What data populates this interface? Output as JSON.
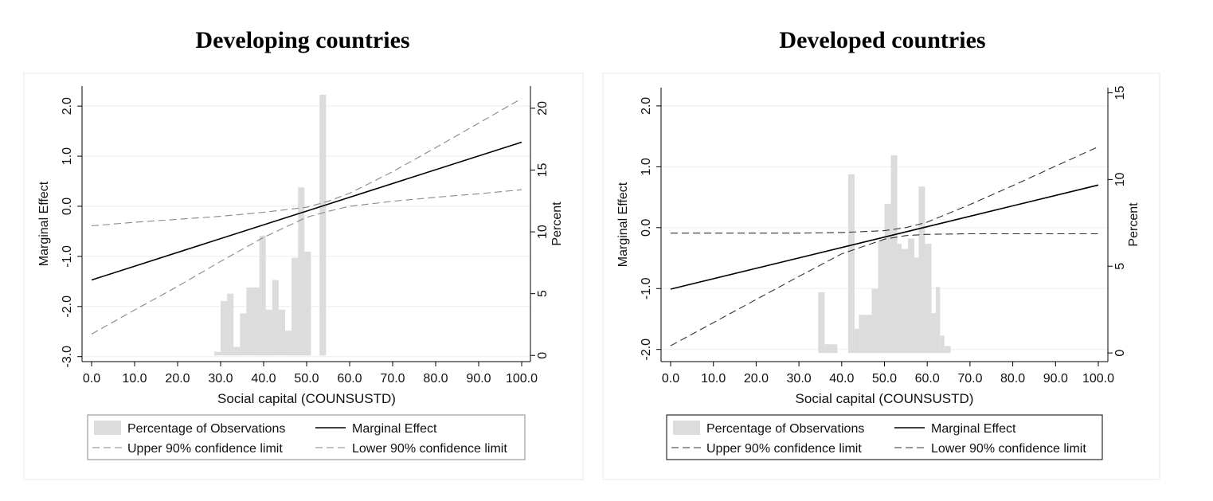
{
  "chart_data": [
    {
      "type": "histogram-line",
      "title": "Developing countries",
      "xlabel": "Social capital (COUNSUSTD)",
      "ylabel": "Marginal Effect",
      "ylabel2": "Percent",
      "xlim": [
        0,
        100
      ],
      "ylim": [
        -3.1,
        2.4
      ],
      "y2lim": [
        -0.5,
        21.8
      ],
      "xticks": [
        "0.0",
        "10.0",
        "20.0",
        "30.0",
        "40.0",
        "50.0",
        "60.0",
        "70.0",
        "80.0",
        "90.0",
        "100.0"
      ],
      "xtick_values": [
        0,
        10,
        20,
        30,
        40,
        50,
        60,
        70,
        80,
        90,
        100
      ],
      "yticks": [
        "-3.0",
        "-2.0",
        "-1.0",
        "0.0",
        "1.0",
        "2.0"
      ],
      "ytick_values": [
        -3,
        -2,
        -1,
        0,
        1,
        2
      ],
      "y2ticks": [
        "0",
        "5",
        "10",
        "15",
        "20"
      ],
      "y2tick_values": [
        0,
        5,
        10,
        15,
        20
      ],
      "histogram": {
        "name": "Percentage of Observations",
        "color": "#dcdcdc",
        "bins": [
          {
            "x0": 28.5,
            "x1": 30.0,
            "percent": 0.3
          },
          {
            "x0": 30.0,
            "x1": 31.5,
            "percent": 4.4
          },
          {
            "x0": 31.5,
            "x1": 33.0,
            "percent": 5.0
          },
          {
            "x0": 33.0,
            "x1": 34.5,
            "percent": 0.7
          },
          {
            "x0": 34.5,
            "x1": 36.0,
            "percent": 3.4
          },
          {
            "x0": 36.0,
            "x1": 39.0,
            "percent": 5.5
          },
          {
            "x0": 39.0,
            "x1": 40.5,
            "percent": 9.7
          },
          {
            "x0": 40.5,
            "x1": 42.0,
            "percent": 3.7
          },
          {
            "x0": 42.0,
            "x1": 43.5,
            "percent": 6.1
          },
          {
            "x0": 43.5,
            "x1": 45.0,
            "percent": 3.7
          },
          {
            "x0": 45.0,
            "x1": 46.5,
            "percent": 2.0
          },
          {
            "x0": 46.5,
            "x1": 48.0,
            "percent": 7.9
          },
          {
            "x0": 48.0,
            "x1": 49.5,
            "percent": 13.6
          },
          {
            "x0": 49.5,
            "x1": 51.0,
            "percent": 8.4
          },
          {
            "x0": 53.0,
            "x1": 54.5,
            "percent": 21.1
          }
        ]
      },
      "series": [
        {
          "name": "Marginal Effect",
          "style": "solid",
          "color": "#000000",
          "x": [
            0,
            100
          ],
          "y": [
            -1.47,
            1.28
          ]
        },
        {
          "name": "Upper 90% confidence limit",
          "style": "dashed",
          "color": "#888888",
          "x": [
            0,
            10,
            20,
            30,
            40,
            50,
            55,
            60,
            70,
            80,
            90,
            100
          ],
          "y": [
            -0.39,
            -0.32,
            -0.26,
            -0.2,
            -0.12,
            -0.02,
            0.1,
            0.26,
            0.69,
            1.17,
            1.66,
            2.15
          ]
        },
        {
          "name": "Lower 90% confidence limit",
          "style": "dashed",
          "color": "#888888",
          "x": [
            0,
            10,
            20,
            30,
            40,
            50,
            55,
            60,
            70,
            80,
            90,
            100
          ],
          "y": [
            -2.55,
            -2.07,
            -1.6,
            -1.1,
            -0.62,
            -0.22,
            -0.1,
            0.0,
            0.1,
            0.18,
            0.25,
            0.33
          ]
        }
      ],
      "legend": {
        "position": "bottom",
        "border": "#888888",
        "entries": [
          "Percentage of Observations",
          "Marginal Effect",
          "Upper 90% confidence limit",
          "Lower 90% confidence limit"
        ]
      }
    },
    {
      "type": "histogram-line",
      "title": "Developed countries",
      "xlabel": "Social capital (COUNSUSTD)",
      "ylabel": "Marginal Effect",
      "ylabel2": "Percent",
      "xlim": [
        0,
        100
      ],
      "ylim": [
        -2.2,
        2.3
      ],
      "y2lim": [
        -0.5,
        15.3
      ],
      "xticks": [
        "0.0",
        "10.0",
        "20.0",
        "30.0",
        "40.0",
        "50.0",
        "60.0",
        "70.0",
        "80.0",
        "90.0",
        "100.0"
      ],
      "xtick_values": [
        0,
        10,
        20,
        30,
        40,
        50,
        60,
        70,
        80,
        90,
        100
      ],
      "yticks": [
        "-2.0",
        "-1.0",
        "0.0",
        "1.0",
        "2.0"
      ],
      "ytick_values": [
        -2,
        -1,
        0,
        1,
        2
      ],
      "y2ticks": [
        "0",
        "5",
        "10",
        "15"
      ],
      "y2tick_values": [
        0,
        5,
        10,
        15
      ],
      "histogram": {
        "name": "Percentage of Observations",
        "color": "#dcdcdc",
        "bins": [
          {
            "x0": 34.5,
            "x1": 36.0,
            "percent": 3.5
          },
          {
            "x0": 36.0,
            "x1": 39.0,
            "percent": 0.5
          },
          {
            "x0": 41.5,
            "x1": 43.0,
            "percent": 10.3
          },
          {
            "x0": 43.0,
            "x1": 44.0,
            "percent": 1.4
          },
          {
            "x0": 44.0,
            "x1": 47.0,
            "percent": 2.2
          },
          {
            "x0": 47.0,
            "x1": 48.5,
            "percent": 3.7
          },
          {
            "x0": 48.5,
            "x1": 50.0,
            "percent": 6.5
          },
          {
            "x0": 50.0,
            "x1": 51.5,
            "percent": 8.6
          },
          {
            "x0": 51.5,
            "x1": 53.0,
            "percent": 11.4
          },
          {
            "x0": 53.0,
            "x1": 54.0,
            "percent": 6.3
          },
          {
            "x0": 54.0,
            "x1": 55.5,
            "percent": 6.0
          },
          {
            "x0": 55.5,
            "x1": 57.0,
            "percent": 6.6
          },
          {
            "x0": 57.0,
            "x1": 58.0,
            "percent": 5.5
          },
          {
            "x0": 58.0,
            "x1": 59.5,
            "percent": 9.6
          },
          {
            "x0": 59.5,
            "x1": 61.0,
            "percent": 6.3
          },
          {
            "x0": 61.0,
            "x1": 62.0,
            "percent": 2.3
          },
          {
            "x0": 62.0,
            "x1": 63.0,
            "percent": 3.8
          },
          {
            "x0": 63.0,
            "x1": 64.0,
            "percent": 1.0
          },
          {
            "x0": 64.0,
            "x1": 65.5,
            "percent": 0.4
          }
        ]
      },
      "series": [
        {
          "name": "Marginal Effect",
          "style": "solid",
          "color": "#000000",
          "x": [
            0,
            100
          ],
          "y": [
            -1.01,
            0.7
          ]
        },
        {
          "name": "Upper 90% confidence limit",
          "style": "dashed",
          "color": "#333333",
          "x": [
            0,
            10,
            20,
            30,
            40,
            50,
            55,
            60,
            70,
            80,
            90,
            100
          ],
          "y": [
            -0.09,
            -0.09,
            -0.09,
            -0.09,
            -0.08,
            -0.05,
            0.0,
            0.09,
            0.38,
            0.69,
            1.01,
            1.33
          ]
        },
        {
          "name": "Lower 90% confidence limit",
          "style": "dashed",
          "color": "#333333",
          "x": [
            0,
            10,
            20,
            30,
            40,
            50,
            55,
            60,
            70,
            80,
            90,
            100
          ],
          "y": [
            -1.94,
            -1.56,
            -1.18,
            -0.8,
            -0.43,
            -0.19,
            -0.13,
            -0.11,
            -0.1,
            -0.1,
            -0.1,
            -0.1
          ]
        }
      ],
      "legend": {
        "position": "bottom",
        "border": "#000000",
        "entries": [
          "Percentage of Observations",
          "Marginal Effect",
          "Upper 90% confidence limit",
          "Lower 90% confidence limit"
        ]
      }
    }
  ]
}
